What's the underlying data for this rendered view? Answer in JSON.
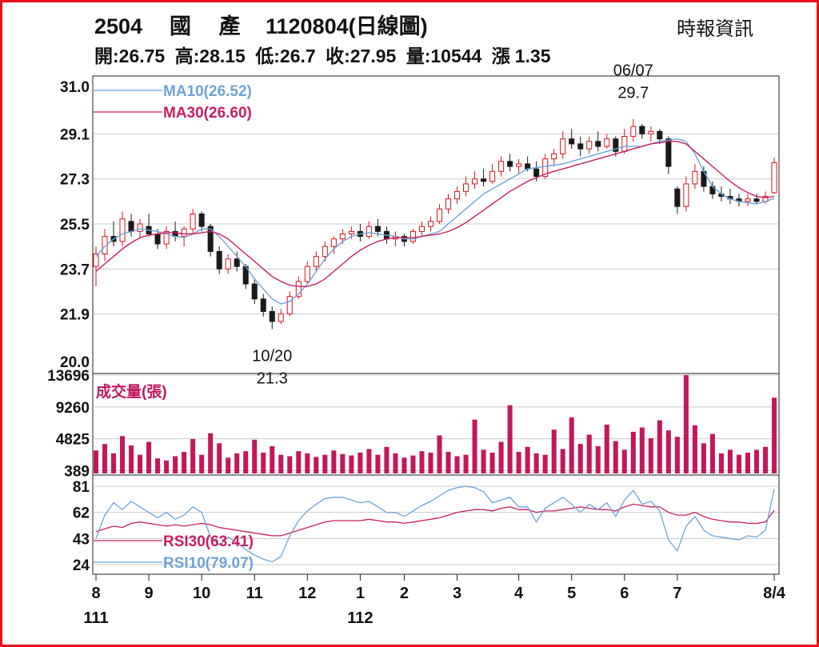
{
  "header": {
    "title_code": "2504",
    "title_name": "國　 產",
    "title_date": "1120804(日線圖)",
    "source": "時報資訊",
    "quote": {
      "open_label": "開:",
      "open": "26.75",
      "high_label": "高:",
      "high": "28.15",
      "low_label": "低:",
      "low": "26.7",
      "close_label": "收:",
      "close": "27.95",
      "volume_label": "量:",
      "volume": "10544",
      "change_label": "漲",
      "change": "1.35"
    }
  },
  "colors": {
    "frame": "#e8121a",
    "up": "#d8141f",
    "down": "#1a1a1a",
    "ma10": "#6fa3d6",
    "ma30": "#c81e61",
    "volume": "#c2185b",
    "rsi30": "#c81e61",
    "rsi10": "#6fa3d6",
    "grid": "#cccccc"
  },
  "chart_data": [
    {
      "type": "candlestick",
      "title": "2504 國產 1120804(日線圖)",
      "ylim": [
        20.0,
        31.0
      ],
      "y_ticks": [
        "31.0",
        "29.1",
        "27.3",
        "25.5",
        "23.7",
        "21.9",
        "20.0"
      ],
      "series": [
        {
          "name": "MA10(26.52)",
          "values": [
            24.2,
            24.6,
            24.9,
            25.1,
            25.2,
            25.3,
            25.25,
            25.2,
            25.1,
            25.0,
            24.95,
            25.1,
            25.3,
            25.3,
            25.0,
            24.6,
            24.2,
            23.8,
            23.3,
            22.9,
            22.5,
            22.3,
            22.4,
            22.7,
            23.1,
            23.6,
            24.1,
            24.5,
            24.8,
            25.0,
            25.1,
            25.15,
            25.1,
            25.05,
            25.0,
            24.9,
            24.9,
            25.0,
            25.1,
            25.2,
            25.5,
            25.8,
            26.1,
            26.4,
            26.7,
            26.9,
            27.1,
            27.3,
            27.5,
            27.7,
            27.75,
            27.8,
            27.85,
            27.9,
            28.0,
            28.1,
            28.2,
            28.3,
            28.4,
            28.5,
            28.6,
            28.6,
            28.6,
            28.7,
            28.8,
            28.85,
            28.9,
            28.8,
            28.3,
            27.6,
            27.0,
            26.7,
            26.5,
            26.4,
            26.35,
            26.3,
            26.4,
            26.52
          ]
        },
        {
          "name": "MA30(26.60)",
          "values": [
            23.6,
            23.9,
            24.2,
            24.5,
            24.75,
            24.95,
            25.05,
            25.1,
            25.15,
            25.15,
            25.1,
            25.1,
            25.15,
            25.2,
            25.1,
            24.9,
            24.6,
            24.3,
            24.0,
            23.7,
            23.4,
            23.2,
            23.05,
            23.0,
            23.0,
            23.1,
            23.3,
            23.6,
            23.9,
            24.2,
            24.45,
            24.65,
            24.8,
            24.9,
            24.95,
            24.95,
            24.95,
            25.0,
            25.05,
            25.1,
            25.2,
            25.35,
            25.55,
            25.8,
            26.05,
            26.3,
            26.55,
            26.8,
            27.0,
            27.2,
            27.35,
            27.5,
            27.6,
            27.7,
            27.8,
            27.9,
            28.0,
            28.1,
            28.2,
            28.3,
            28.4,
            28.5,
            28.6,
            28.7,
            28.75,
            28.8,
            28.8,
            28.7,
            28.4,
            28.1,
            27.8,
            27.5,
            27.2,
            26.95,
            26.75,
            26.6,
            26.55,
            26.6
          ]
        }
      ],
      "candles": [
        {
          "o": 23.8,
          "h": 24.6,
          "l": 23.0,
          "c": 24.3
        },
        {
          "o": 24.3,
          "h": 25.3,
          "l": 24.0,
          "c": 25.0
        },
        {
          "o": 25.0,
          "h": 25.6,
          "l": 24.6,
          "c": 24.8
        },
        {
          "o": 24.8,
          "h": 26.0,
          "l": 24.6,
          "c": 25.7
        },
        {
          "o": 25.6,
          "h": 25.9,
          "l": 25.0,
          "c": 25.2
        },
        {
          "o": 25.2,
          "h": 25.7,
          "l": 24.9,
          "c": 25.5
        },
        {
          "o": 25.4,
          "h": 25.9,
          "l": 25.0,
          "c": 25.1
        },
        {
          "o": 25.1,
          "h": 25.3,
          "l": 24.5,
          "c": 24.7
        },
        {
          "o": 24.7,
          "h": 25.4,
          "l": 24.5,
          "c": 25.2
        },
        {
          "o": 25.2,
          "h": 25.6,
          "l": 24.8,
          "c": 25.0
        },
        {
          "o": 25.0,
          "h": 25.4,
          "l": 24.6,
          "c": 25.3
        },
        {
          "o": 25.3,
          "h": 26.1,
          "l": 25.1,
          "c": 25.9
        },
        {
          "o": 25.9,
          "h": 26.0,
          "l": 25.2,
          "c": 25.4
        },
        {
          "o": 25.4,
          "h": 25.5,
          "l": 24.2,
          "c": 24.4
        },
        {
          "o": 24.4,
          "h": 24.6,
          "l": 23.5,
          "c": 23.7
        },
        {
          "o": 23.7,
          "h": 24.3,
          "l": 23.5,
          "c": 24.1
        },
        {
          "o": 24.1,
          "h": 24.4,
          "l": 23.6,
          "c": 23.8
        },
        {
          "o": 23.8,
          "h": 23.9,
          "l": 22.9,
          "c": 23.1
        },
        {
          "o": 23.1,
          "h": 23.3,
          "l": 22.3,
          "c": 22.5
        },
        {
          "o": 22.5,
          "h": 22.7,
          "l": 21.8,
          "c": 22.0
        },
        {
          "o": 22.0,
          "h": 22.2,
          "l": 21.3,
          "c": 21.6
        },
        {
          "o": 21.6,
          "h": 22.1,
          "l": 21.5,
          "c": 21.9
        },
        {
          "o": 21.9,
          "h": 22.8,
          "l": 21.8,
          "c": 22.6
        },
        {
          "o": 22.6,
          "h": 23.4,
          "l": 22.5,
          "c": 23.2
        },
        {
          "o": 23.2,
          "h": 24.0,
          "l": 23.1,
          "c": 23.8
        },
        {
          "o": 23.8,
          "h": 24.4,
          "l": 23.6,
          "c": 24.2
        },
        {
          "o": 24.2,
          "h": 24.8,
          "l": 24.0,
          "c": 24.6
        },
        {
          "o": 24.6,
          "h": 25.0,
          "l": 24.3,
          "c": 24.9
        },
        {
          "o": 24.9,
          "h": 25.3,
          "l": 24.7,
          "c": 25.1
        },
        {
          "o": 25.1,
          "h": 25.4,
          "l": 24.9,
          "c": 25.2
        },
        {
          "o": 25.2,
          "h": 25.5,
          "l": 24.8,
          "c": 25.0
        },
        {
          "o": 25.0,
          "h": 25.6,
          "l": 24.9,
          "c": 25.4
        },
        {
          "o": 25.4,
          "h": 25.7,
          "l": 25.0,
          "c": 25.2
        },
        {
          "o": 25.2,
          "h": 25.4,
          "l": 24.7,
          "c": 24.9
        },
        {
          "o": 24.9,
          "h": 25.2,
          "l": 24.6,
          "c": 25.0
        },
        {
          "o": 25.0,
          "h": 25.1,
          "l": 24.6,
          "c": 24.8
        },
        {
          "o": 24.8,
          "h": 25.3,
          "l": 24.7,
          "c": 25.2
        },
        {
          "o": 25.2,
          "h": 25.6,
          "l": 25.0,
          "c": 25.4
        },
        {
          "o": 25.4,
          "h": 25.8,
          "l": 25.2,
          "c": 25.6
        },
        {
          "o": 25.6,
          "h": 26.3,
          "l": 25.5,
          "c": 26.1
        },
        {
          "o": 26.1,
          "h": 26.7,
          "l": 25.9,
          "c": 26.5
        },
        {
          "o": 26.5,
          "h": 27.0,
          "l": 26.3,
          "c": 26.8
        },
        {
          "o": 26.8,
          "h": 27.4,
          "l": 26.6,
          "c": 27.1
        },
        {
          "o": 27.1,
          "h": 27.6,
          "l": 26.9,
          "c": 27.3
        },
        {
          "o": 27.3,
          "h": 27.7,
          "l": 27.0,
          "c": 27.2
        },
        {
          "o": 27.2,
          "h": 27.9,
          "l": 27.1,
          "c": 27.6
        },
        {
          "o": 27.6,
          "h": 28.2,
          "l": 27.4,
          "c": 28.0
        },
        {
          "o": 28.0,
          "h": 28.3,
          "l": 27.6,
          "c": 27.8
        },
        {
          "o": 27.8,
          "h": 28.1,
          "l": 27.5,
          "c": 27.9
        },
        {
          "o": 27.9,
          "h": 28.2,
          "l": 27.6,
          "c": 27.7
        },
        {
          "o": 27.7,
          "h": 28.0,
          "l": 27.2,
          "c": 27.4
        },
        {
          "o": 27.4,
          "h": 28.3,
          "l": 27.3,
          "c": 28.1
        },
        {
          "o": 28.1,
          "h": 28.5,
          "l": 27.8,
          "c": 28.3
        },
        {
          "o": 28.3,
          "h": 29.2,
          "l": 28.1,
          "c": 28.9
        },
        {
          "o": 28.9,
          "h": 29.3,
          "l": 28.5,
          "c": 28.7
        },
        {
          "o": 28.7,
          "h": 29.0,
          "l": 28.2,
          "c": 28.5
        },
        {
          "o": 28.5,
          "h": 29.0,
          "l": 28.3,
          "c": 28.8
        },
        {
          "o": 28.8,
          "h": 29.2,
          "l": 28.4,
          "c": 28.6
        },
        {
          "o": 28.6,
          "h": 29.1,
          "l": 28.5,
          "c": 28.9
        },
        {
          "o": 28.9,
          "h": 29.0,
          "l": 28.2,
          "c": 28.4
        },
        {
          "o": 28.4,
          "h": 29.3,
          "l": 28.3,
          "c": 29.0
        },
        {
          "o": 29.0,
          "h": 29.7,
          "l": 28.8,
          "c": 29.4
        },
        {
          "o": 29.4,
          "h": 29.5,
          "l": 28.9,
          "c": 29.1
        },
        {
          "o": 29.1,
          "h": 29.4,
          "l": 28.8,
          "c": 29.2
        },
        {
          "o": 29.2,
          "h": 29.3,
          "l": 28.7,
          "c": 28.9
        },
        {
          "o": 28.9,
          "h": 29.0,
          "l": 27.5,
          "c": 27.8
        },
        {
          "o": 26.9,
          "h": 27.0,
          "l": 25.9,
          "c": 26.2
        },
        {
          "o": 26.2,
          "h": 27.4,
          "l": 26.0,
          "c": 27.1
        },
        {
          "o": 27.1,
          "h": 27.9,
          "l": 26.9,
          "c": 27.6
        },
        {
          "o": 27.6,
          "h": 27.8,
          "l": 26.8,
          "c": 27.0
        },
        {
          "o": 27.0,
          "h": 27.2,
          "l": 26.5,
          "c": 26.7
        },
        {
          "o": 26.7,
          "h": 27.0,
          "l": 26.4,
          "c": 26.6
        },
        {
          "o": 26.6,
          "h": 26.9,
          "l": 26.3,
          "c": 26.5
        },
        {
          "o": 26.5,
          "h": 26.7,
          "l": 26.2,
          "c": 26.4
        },
        {
          "o": 26.4,
          "h": 26.7,
          "l": 26.2,
          "c": 26.5
        },
        {
          "o": 26.5,
          "h": 26.7,
          "l": 26.3,
          "c": 26.4
        },
        {
          "o": 26.4,
          "h": 26.8,
          "l": 26.3,
          "c": 26.6
        },
        {
          "o": 26.75,
          "h": 28.15,
          "l": 26.7,
          "c": 27.95
        }
      ],
      "annotations": [
        {
          "date": "06/07",
          "value": "29.7",
          "candle": 61
        },
        {
          "date": "10/20",
          "value": "21.3",
          "candle": 20
        }
      ]
    },
    {
      "type": "bar",
      "title": "成交量(張)",
      "ylim": [
        0,
        13696
      ],
      "y_ticks": [
        "13696",
        "9260",
        "4825",
        "389"
      ],
      "values": [
        3200,
        4100,
        2800,
        5200,
        3900,
        2600,
        4400,
        2100,
        1800,
        2400,
        3000,
        4800,
        2600,
        5600,
        4200,
        2200,
        2800,
        3100,
        4700,
        2900,
        3800,
        2600,
        2400,
        3100,
        2800,
        2300,
        2600,
        3200,
        2700,
        2500,
        2900,
        3400,
        2600,
        3700,
        2800,
        2200,
        2500,
        3100,
        2900,
        5300,
        3000,
        2400,
        2600,
        7500,
        3300,
        2900,
        4400,
        9500,
        3000,
        3700,
        2800,
        2600,
        6100,
        3400,
        7800,
        4100,
        5400,
        3800,
        6800,
        4500,
        3300,
        5800,
        6400,
        4900,
        7400,
        6000,
        5100,
        13696,
        6700,
        4200,
        5500,
        2800,
        3300,
        2600,
        2900,
        3300,
        3700,
        10544
      ],
      "series": [
        {
          "name": "成交量(張)"
        }
      ]
    },
    {
      "type": "line",
      "ylim": [
        24,
        81
      ],
      "y_ticks": [
        "81",
        "62",
        "43",
        "24"
      ],
      "series": [
        {
          "name": "RSI30(63.41)",
          "values": [
            48,
            50,
            52,
            51,
            54,
            55,
            54,
            53,
            52,
            53,
            52,
            53,
            54,
            53,
            51,
            50,
            49,
            48,
            47,
            46,
            45,
            45,
            47,
            49,
            51,
            53,
            55,
            56,
            56,
            56,
            56,
            57,
            56,
            55,
            55,
            54,
            55,
            56,
            57,
            58,
            60,
            62,
            63,
            64,
            64,
            63,
            65,
            66,
            64,
            64,
            62,
            63,
            63,
            64,
            65,
            66,
            65,
            64,
            64,
            63,
            66,
            68,
            67,
            66,
            66,
            62,
            60,
            60,
            62,
            59,
            57,
            56,
            55,
            55,
            54,
            54,
            55,
            63.41
          ]
        },
        {
          "name": "RSI10(79.07)",
          "values": [
            43,
            60,
            69,
            64,
            70,
            66,
            62,
            58,
            62,
            57,
            60,
            66,
            62,
            44,
            38,
            44,
            40,
            35,
            31,
            28,
            26,
            30,
            45,
            56,
            63,
            68,
            72,
            73,
            73,
            71,
            69,
            70,
            66,
            62,
            62,
            59,
            63,
            67,
            70,
            74,
            78,
            80,
            81,
            80,
            77,
            69,
            71,
            73,
            66,
            66,
            55,
            65,
            69,
            73,
            68,
            62,
            68,
            64,
            69,
            59,
            71,
            78,
            68,
            70,
            63,
            42,
            34,
            52,
            59,
            49,
            45,
            44,
            43,
            42,
            45,
            44,
            49,
            79.07
          ]
        }
      ]
    }
  ],
  "x_axis": {
    "labels": [
      "8",
      "9",
      "10",
      "11",
      "12",
      "1",
      "2",
      "3",
      "4",
      "5",
      "6",
      "7",
      "8/4"
    ],
    "positions": [
      0,
      6,
      12,
      18,
      24,
      30,
      35,
      41,
      48,
      54,
      60,
      66,
      77
    ],
    "years": [
      {
        "label": "111",
        "index": 0
      },
      {
        "label": "112",
        "index": 30
      }
    ]
  }
}
